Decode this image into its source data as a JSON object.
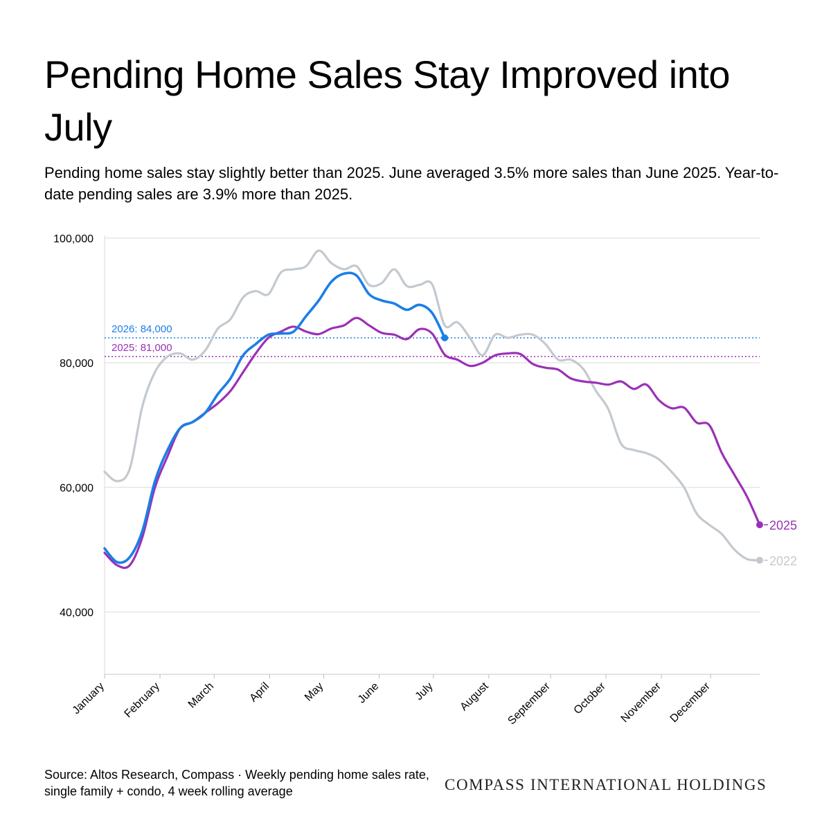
{
  "title": "Pending Home Sales Stay Improved into July",
  "subtitle": "Pending home sales stay slightly better than 2025. June averaged 3.5% more sales than June 2025. Year-to-date pending sales are 3.9% more than 2025.",
  "source": "Source: Altos Research, Compass · Weekly pending home sales rate, single family + condo, 4 week rolling average",
  "brand": "COMPASS INTERNATIONAL HOLDINGS",
  "colors": {
    "series_2026": "#1a7fe6",
    "series_2025": "#9b30b7",
    "series_2022": "#c3c9cf",
    "grid": "#e6e6e6"
  },
  "chart_data": {
    "type": "line",
    "xlabel": "",
    "ylabel": "",
    "ylim": [
      30000,
      100000
    ],
    "xlim": [
      0,
      52
    ],
    "grid": "horizontal",
    "x_unit": "week of year",
    "month_ticks": [
      {
        "label": "January",
        "week": 0
      },
      {
        "label": "February",
        "week": 4.4
      },
      {
        "label": "March",
        "week": 8.7
      },
      {
        "label": "April",
        "week": 13.1
      },
      {
        "label": "May",
        "week": 17.4
      },
      {
        "label": "June",
        "week": 21.8
      },
      {
        "label": "July",
        "week": 26.1
      },
      {
        "label": "August",
        "week": 30.5
      },
      {
        "label": "September",
        "week": 35.4
      },
      {
        "label": "October",
        "week": 39.8
      },
      {
        "label": "November",
        "week": 44.2
      },
      {
        "label": "December",
        "week": 48.1
      }
    ],
    "y_ticks": [
      {
        "label": "40,000",
        "value": 40000
      },
      {
        "label": "60,000",
        "value": 60000
      },
      {
        "label": "80,000",
        "value": 80000
      },
      {
        "label": "100,000",
        "value": 100000
      }
    ],
    "reference_lines": [
      {
        "label": "2026: 84,000",
        "value": 84000,
        "series": "2026"
      },
      {
        "label": "2025: 81,000",
        "value": 81000,
        "series": "2025"
      }
    ],
    "series": [
      {
        "name": "2022",
        "end_label": "2022",
        "x": [
          0,
          1,
          2,
          3,
          4,
          5,
          6,
          7,
          8,
          9,
          10,
          11,
          12,
          13,
          14,
          15,
          16,
          17,
          18,
          19,
          20,
          21,
          22,
          23,
          24,
          25,
          26,
          27,
          28,
          29,
          30,
          31,
          32,
          33,
          34,
          35,
          36,
          37,
          38,
          39,
          40,
          41,
          42,
          43,
          44,
          45,
          46,
          47,
          48,
          49,
          50,
          51,
          52
        ],
        "values": [
          62500,
          61000,
          63000,
          73000,
          78500,
          81000,
          81500,
          80500,
          82000,
          85500,
          87000,
          90500,
          91500,
          91000,
          94500,
          95000,
          95500,
          98000,
          96000,
          95000,
          95500,
          92500,
          92800,
          95000,
          92300,
          92500,
          92600,
          86000,
          86500,
          84000,
          81200,
          84500,
          84000,
          84500,
          84500,
          83000,
          80500,
          80500,
          79000,
          75500,
          72500,
          67000,
          66000,
          65500,
          64500,
          62500,
          60000,
          55800,
          54000,
          52500,
          50000,
          48500,
          48300
        ]
      },
      {
        "name": "2025",
        "end_label": "2025",
        "x": [
          0,
          1,
          2,
          3,
          4,
          5,
          6,
          7,
          8,
          9,
          10,
          11,
          12,
          13,
          14,
          15,
          16,
          17,
          18,
          19,
          20,
          21,
          22,
          23,
          24,
          25,
          26,
          27,
          28,
          29,
          30,
          31,
          32,
          33,
          34,
          35,
          36,
          37,
          38,
          39,
          40,
          41,
          42,
          43,
          44,
          45,
          46,
          47,
          48,
          49,
          50,
          51,
          52
        ],
        "values": [
          49500,
          47500,
          47500,
          52000,
          60000,
          65000,
          69500,
          70500,
          72000,
          73500,
          75500,
          78500,
          81500,
          84000,
          85000,
          85800,
          85000,
          84600,
          85500,
          86000,
          87200,
          86000,
          84800,
          84500,
          83800,
          85400,
          84700,
          81300,
          80500,
          79500,
          80000,
          81200,
          81500,
          81400,
          79800,
          79200,
          78900,
          77500,
          77000,
          76800,
          76500,
          77000,
          75800,
          76500,
          74000,
          72700,
          72800,
          70400,
          70000,
          65500,
          62000,
          58500,
          54000
        ]
      },
      {
        "name": "2026",
        "x": [
          0,
          1,
          2,
          3,
          4,
          5,
          6,
          7,
          8,
          9,
          10,
          11,
          12,
          13,
          14,
          15,
          16,
          17,
          18,
          19,
          20,
          21,
          22,
          23,
          24,
          25,
          26,
          27
        ],
        "values": [
          50200,
          48000,
          48800,
          53000,
          61000,
          66000,
          69500,
          70500,
          72000,
          75000,
          77500,
          81200,
          83000,
          84500,
          84700,
          85000,
          87500,
          90000,
          93000,
          94300,
          94000,
          91000,
          90000,
          89500,
          88500,
          89300,
          88000,
          84000
        ]
      }
    ]
  }
}
